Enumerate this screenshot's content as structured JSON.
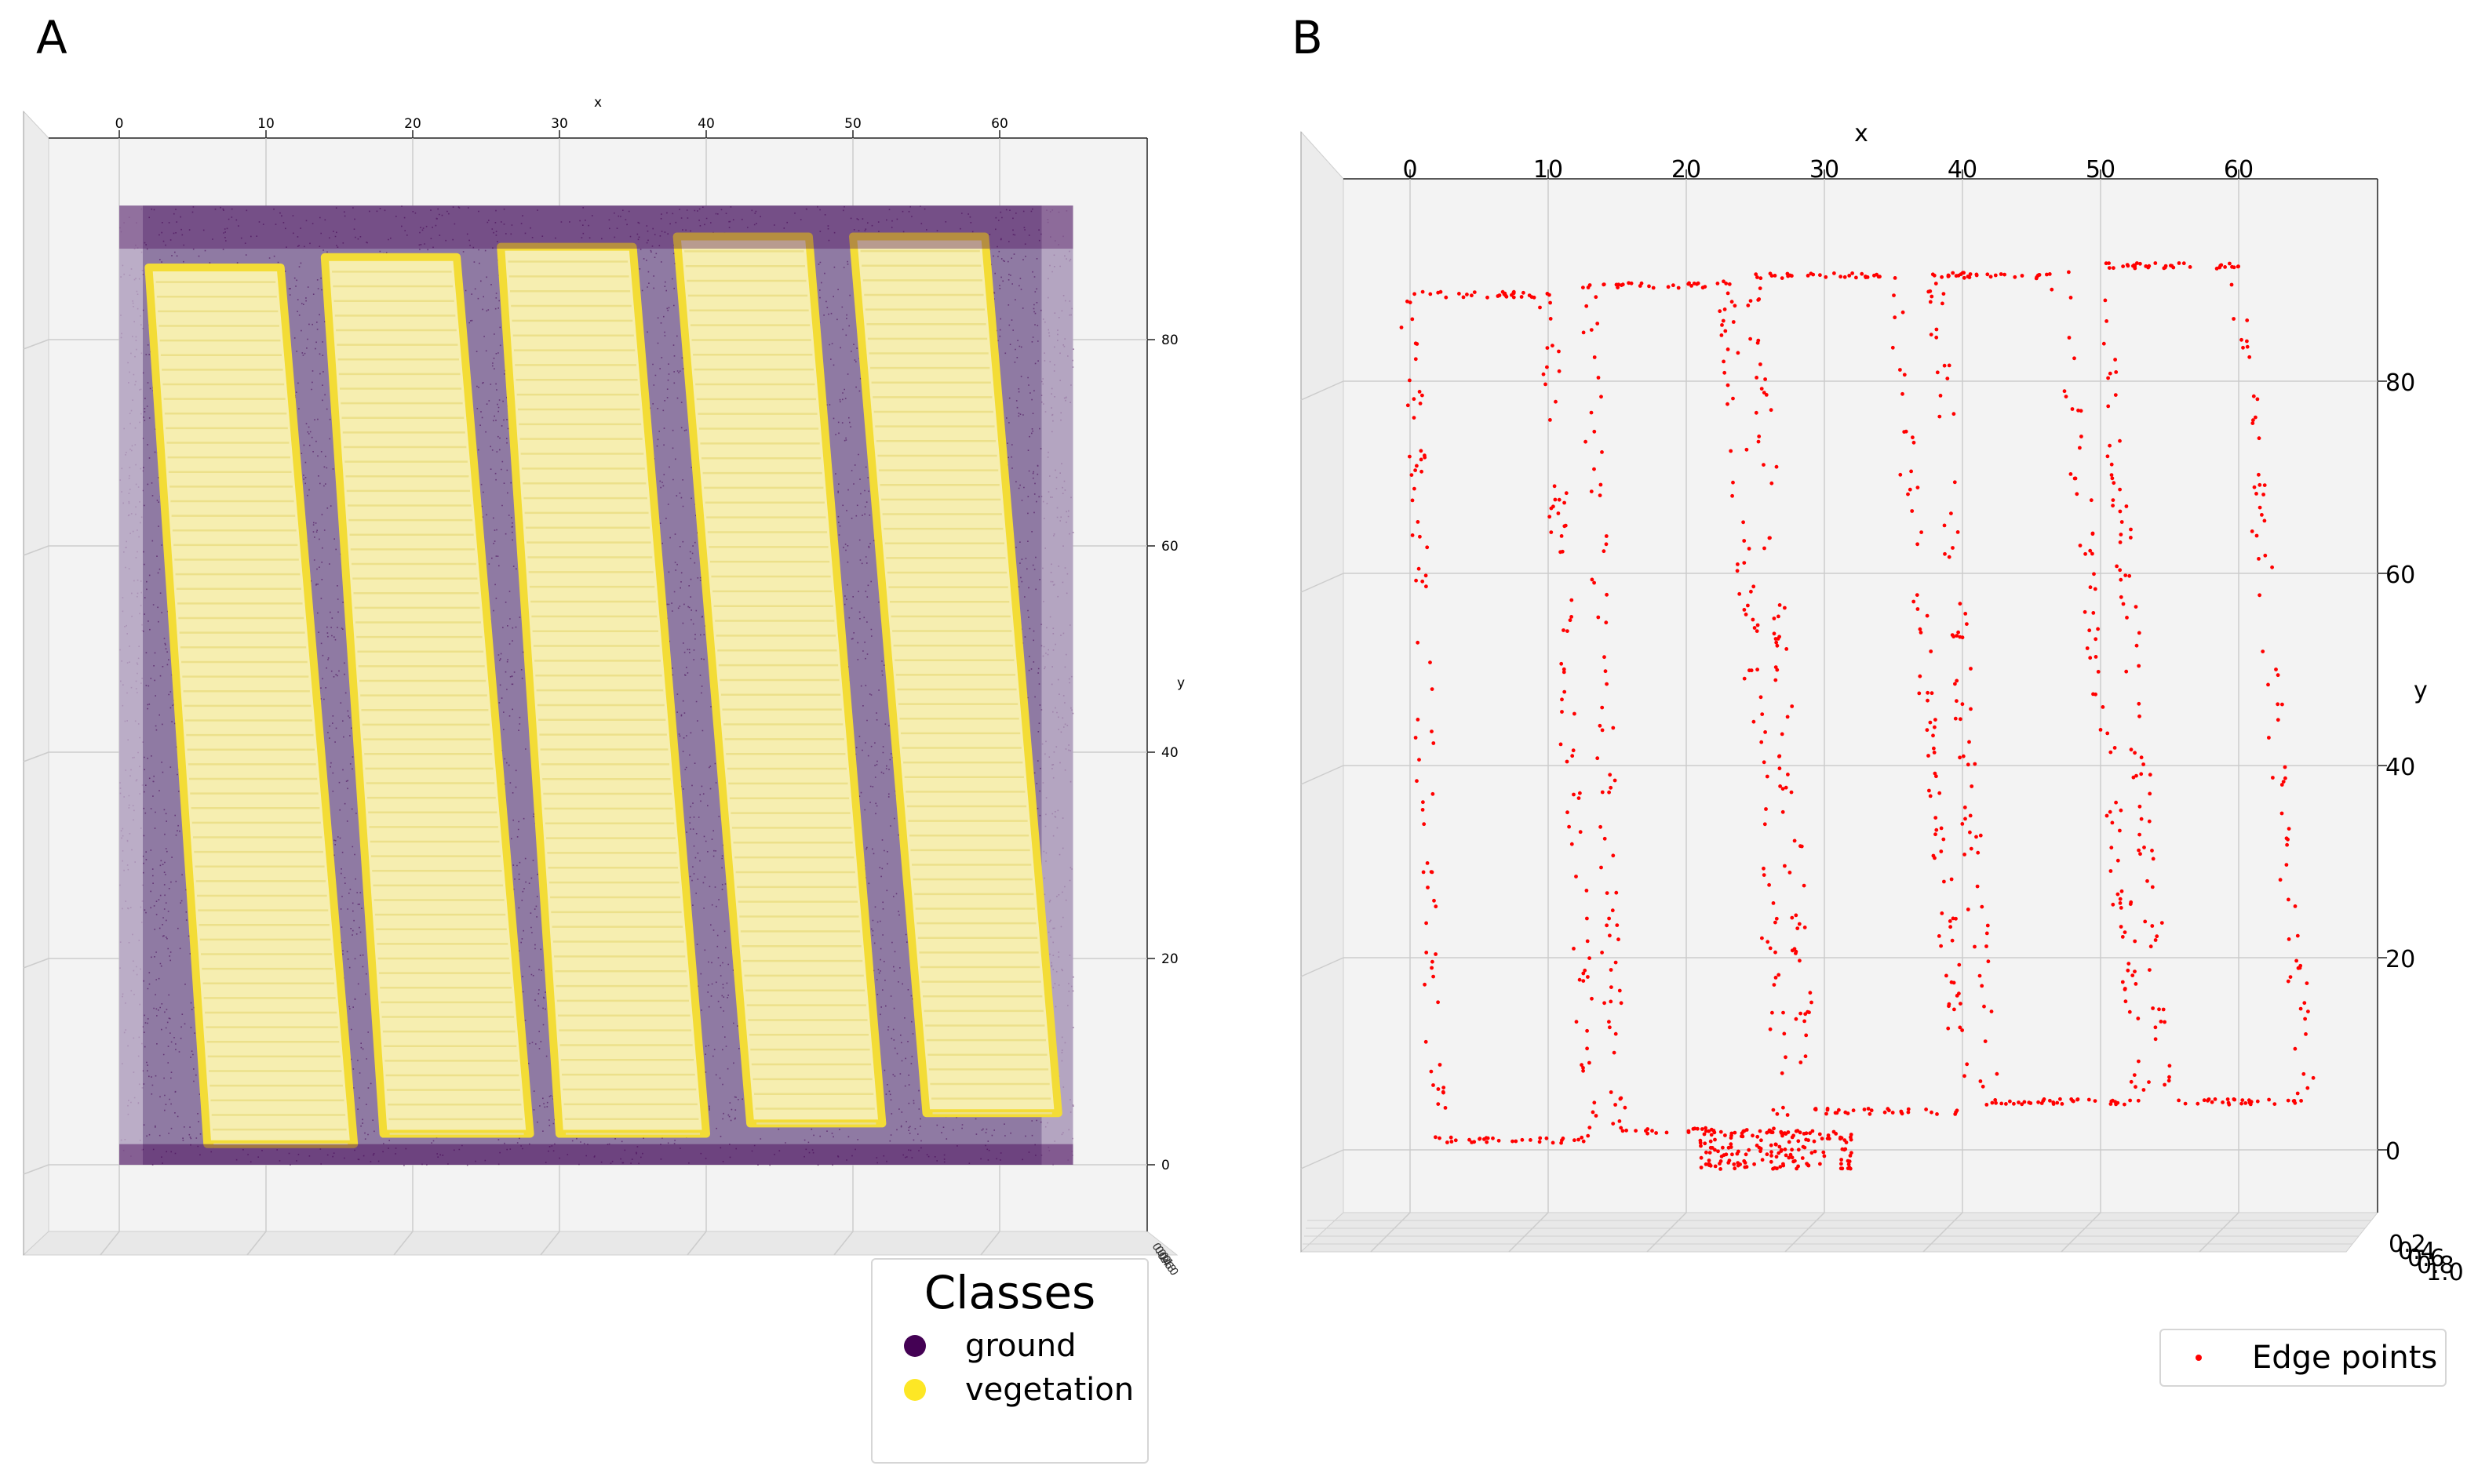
{
  "panels": {
    "a_label": "A",
    "b_label": "B"
  },
  "chart_data": [
    {
      "type": "scatter",
      "title": "",
      "xlabel": "x",
      "ylabel": "y",
      "zlabel": "",
      "projection": "3d",
      "view": "top-down",
      "xlim": [
        -5,
        70
      ],
      "ylim": [
        -3,
        95
      ],
      "x_ticks": [
        "0",
        "10",
        "20",
        "30",
        "40",
        "50",
        "60"
      ],
      "y_ticks": [
        "0",
        "20",
        "40",
        "60",
        "80"
      ],
      "z_ticks_note": "overlapping illegible tick labels",
      "grid": true,
      "colors": {
        "ground": "#440154",
        "vegetation": "#fde725"
      },
      "legend": {
        "title": "Classes",
        "placement": "bottom-center",
        "entries": [
          {
            "name": "ground",
            "color": "#440154"
          },
          {
            "name": "vegetation",
            "color": "#fde725"
          }
        ]
      },
      "field_extent": {
        "x": [
          0,
          65
        ],
        "y": [
          0,
          93
        ]
      },
      "vegetation_plots": [
        {
          "x_bottom": [
            6,
            16
          ],
          "x_top": [
            2,
            11
          ],
          "y": [
            2,
            87
          ]
        },
        {
          "x_bottom": [
            18,
            28
          ],
          "x_top": [
            14,
            23
          ],
          "y": [
            3,
            88
          ]
        },
        {
          "x_bottom": [
            30,
            40
          ],
          "x_top": [
            26,
            35
          ],
          "y": [
            3,
            89
          ]
        },
        {
          "x_bottom": [
            43,
            52
          ],
          "x_top": [
            38,
            47
          ],
          "y": [
            4,
            90
          ]
        },
        {
          "x_bottom": [
            55,
            64
          ],
          "x_top": [
            50,
            59
          ],
          "y": [
            5,
            90
          ]
        }
      ]
    },
    {
      "type": "scatter",
      "title": "",
      "xlabel": "x",
      "ylabel": "y",
      "zlabel": "",
      "projection": "3d",
      "view": "top-down",
      "xlim": [
        -5,
        70
      ],
      "ylim": [
        -3,
        95
      ],
      "zlim": [
        0.0,
        1.0
      ],
      "x_ticks": [
        "0",
        "10",
        "20",
        "30",
        "40",
        "50",
        "60"
      ],
      "y_ticks": [
        "0",
        "20",
        "40",
        "60",
        "80"
      ],
      "z_ticks": [
        "0.2",
        "0.4",
        "0.6",
        "0.8",
        "1.0"
      ],
      "grid": true,
      "series": [
        {
          "name": "Edge points",
          "color": "#ff0000"
        }
      ],
      "legend": {
        "placement": "bottom-right",
        "entries": [
          {
            "name": "Edge points",
            "color": "#ff0000"
          }
        ]
      },
      "plot_outlines": [
        {
          "x_bottom": [
            2,
            13
          ],
          "x_top": [
            0,
            10
          ],
          "y": [
            1,
            89
          ]
        },
        {
          "x_bottom": [
            15,
            27
          ],
          "x_top": [
            13,
            23
          ],
          "y": [
            2,
            90
          ]
        },
        {
          "x_bottom": [
            29,
            40
          ],
          "x_top": [
            25,
            35
          ],
          "y": [
            4,
            91
          ]
        },
        {
          "x_bottom": [
            42,
            53
          ],
          "x_top": [
            38,
            47
          ],
          "y": [
            5,
            91
          ]
        },
        {
          "x_bottom": [
            55,
            65
          ],
          "x_top": [
            50,
            60
          ],
          "y": [
            5,
            92
          ]
        }
      ],
      "bottom_cluster": {
        "x": [
          21,
          32
        ],
        "y": [
          -2,
          2
        ]
      }
    }
  ]
}
